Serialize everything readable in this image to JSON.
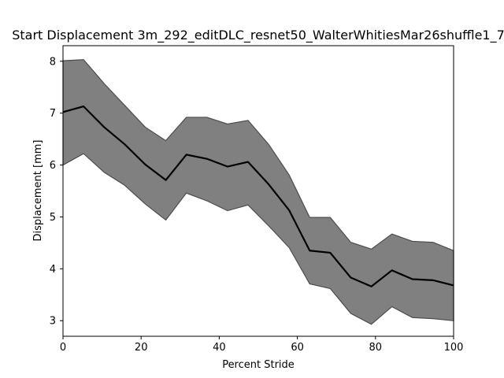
{
  "chart_data": {
    "type": "area",
    "title": "Start Displacement 3m_292_editDLC_resnet50_WalterWhitiesMar26shuffle1_7",
    "xlabel": "Percent Stride",
    "ylabel": "Displacement [mm]",
    "xlim": [
      0,
      100
    ],
    "ylim": [
      2.7,
      8.3
    ],
    "xticks": [
      0,
      20,
      40,
      60,
      80,
      100
    ],
    "yticks": [
      3,
      4,
      5,
      6,
      7,
      8
    ],
    "grid": false,
    "x": [
      0,
      5.26,
      10.53,
      15.79,
      21.05,
      26.32,
      31.58,
      36.84,
      42.11,
      47.37,
      52.63,
      57.89,
      63.16,
      68.42,
      73.68,
      78.95,
      84.21,
      89.47,
      94.74,
      100
    ],
    "series": [
      {
        "values": [
          7.02,
          7.13,
          6.73,
          6.4,
          6.01,
          5.71,
          6.2,
          6.12,
          5.97,
          6.06,
          5.63,
          5.13,
          4.35,
          4.31,
          3.83,
          3.66,
          3.97,
          3.8,
          3.78,
          3.68
        ],
        "upper": [
          8.01,
          8.03,
          7.57,
          7.15,
          6.73,
          6.47,
          6.92,
          6.92,
          6.79,
          6.86,
          6.4,
          5.81,
          4.99,
          4.99,
          4.51,
          4.38,
          4.67,
          4.53,
          4.51,
          4.35
        ],
        "lower": [
          6.0,
          6.22,
          5.86,
          5.61,
          5.25,
          4.94,
          5.46,
          5.31,
          5.12,
          5.23,
          4.83,
          4.41,
          3.71,
          3.62,
          3.14,
          2.93,
          3.27,
          3.06,
          3.04,
          3.0
        ],
        "line_color": "#000000",
        "band_color": "#808080",
        "band_edge_color": "#4d4d4d"
      }
    ]
  }
}
